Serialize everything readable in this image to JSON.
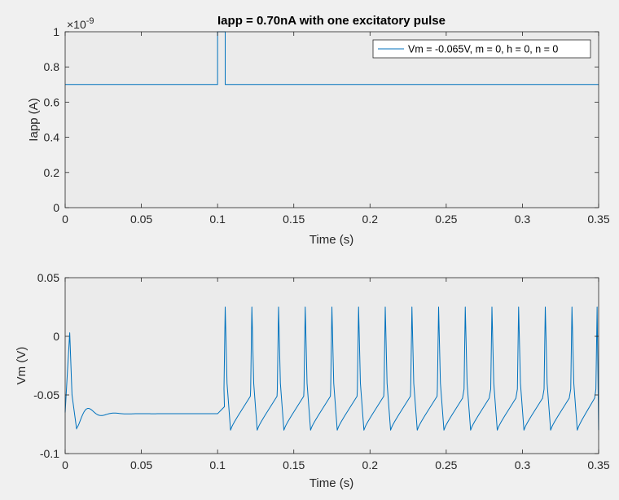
{
  "figure": {
    "title": "Iapp = 0.70nA with one excitatory pulse"
  },
  "legend": {
    "label": "Vm = -0.065V, m = 0, h = 0, n = 0"
  },
  "colors": {
    "background": "#f0f0f0",
    "axes_fill": "#ebebeb",
    "line": "#0072bd",
    "axis": "#262626"
  },
  "chart_data": [
    {
      "type": "line",
      "title": "Iapp = 0.70nA with one excitatory pulse",
      "xlabel": "Time (s)",
      "ylabel": "Iapp (A)",
      "xlim": [
        0,
        0.35
      ],
      "ylim": [
        0,
        1
      ],
      "y_exponent_label": "×10",
      "y_exponent_power": "-9",
      "xticks": [
        "0",
        "0.05",
        "0.1",
        "0.15",
        "0.2",
        "0.25",
        "0.3",
        "0.35"
      ],
      "yticks": [
        "0",
        "0.2",
        "0.4",
        "0.6",
        "0.8",
        "1"
      ],
      "legend_position": "top-right",
      "series": [
        {
          "name": "Vm = -0.065V, m = 0, h = 0, n = 0",
          "x": [
            0,
            0.1,
            0.1,
            0.105,
            0.105,
            0.35
          ],
          "y": [
            0.7,
            0.7,
            1.0,
            1.0,
            0.7,
            0.7
          ]
        }
      ]
    },
    {
      "type": "line",
      "xlabel": "Time (s)",
      "ylabel": "Vm (V)",
      "xlim": [
        0,
        0.35
      ],
      "ylim": [
        -0.1,
        0.05
      ],
      "xticks": [
        "0",
        "0.05",
        "0.1",
        "0.15",
        "0.2",
        "0.25",
        "0.3",
        "0.35"
      ],
      "yticks": [
        "-0.1",
        "-0.05",
        "0",
        "0.05"
      ],
      "spike_times": [
        0.003,
        0.105,
        0.1225,
        0.14,
        0.1575,
        0.175,
        0.1925,
        0.21,
        0.2275,
        0.245,
        0.2625,
        0.28,
        0.2975,
        0.315,
        0.3325,
        0.349
      ],
      "spike_peak": 0.025,
      "trough": -0.08,
      "rest": -0.066
    }
  ]
}
